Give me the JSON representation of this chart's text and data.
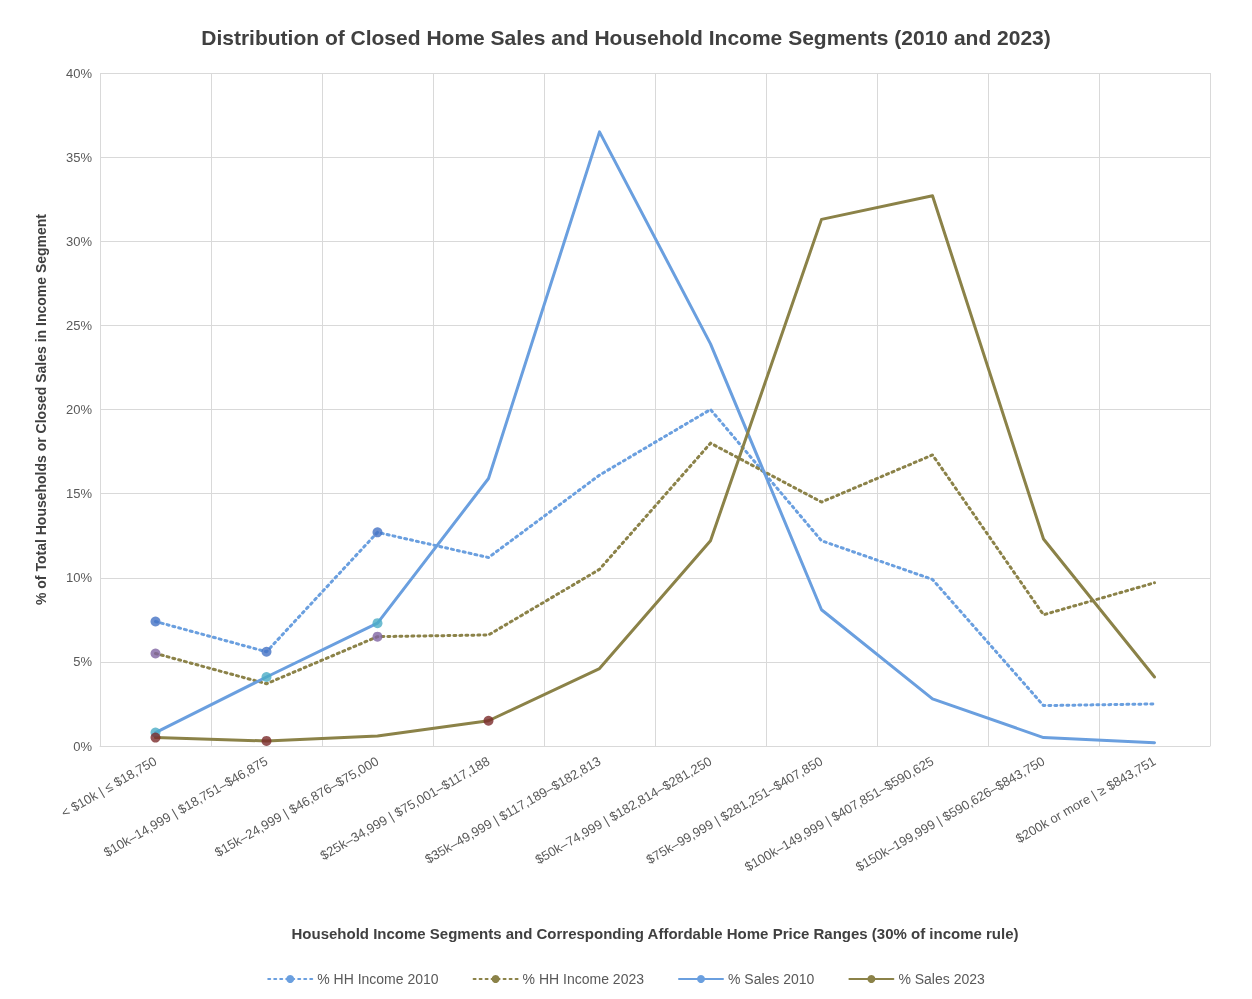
{
  "chart_data": {
    "type": "line",
    "title": "Distribution of Closed Home Sales and Household Income Segments (2010 and 2023)",
    "xlabel": "Household Income Segments and Corresponding Affordable Home Price Ranges (30% of income rule)",
    "ylabel": "% of Total Households or Closed Sales in Income Segment",
    "categories": [
      "< $10k | ≤ $18,750",
      "$10k–14,999 | $18,751–$46,875",
      "$15k–24,999 | $46,876–$75,000",
      "$25k–34,999 | $75,001–$117,188",
      "$35k–49,999 | $117,189–$182,813",
      "$50k–74,999 | $182,814–$281,250",
      "$75k–99,999 | $281,251–$407,850",
      "$100k–149,999 | $407,851–$590,625",
      "$150k–199,999 | $590,626–$843,750",
      "$200k or more | ≥ $843,751"
    ],
    "series": [
      {
        "name": "% HH Income 2010",
        "color": "#6a9fdf",
        "line_style": "dotted",
        "values": [
          7.4,
          5.6,
          12.7,
          11.2,
          16.1,
          20.0,
          12.2,
          9.9,
          2.4,
          2.5
        ]
      },
      {
        "name": "% HH Income 2023",
        "color": "#8b8248",
        "line_style": "dotted",
        "values": [
          5.5,
          3.7,
          6.5,
          6.6,
          10.5,
          18.0,
          14.5,
          17.3,
          7.8,
          9.7
        ]
      },
      {
        "name": "% Sales 2010",
        "color": "#6a9fdf",
        "line_style": "solid",
        "values": [
          0.8,
          4.1,
          7.3,
          15.9,
          36.5,
          23.9,
          8.1,
          2.8,
          0.5,
          0.2
        ]
      },
      {
        "name": "% Sales 2023",
        "color": "#8b8248",
        "line_style": "solid",
        "values": [
          0.5,
          0.3,
          0.6,
          1.5,
          4.6,
          12.2,
          31.3,
          32.7,
          12.3,
          4.1
        ]
      },
      {
        "type": "scatter",
        "color": "#4472c4",
        "marker": "circle",
        "x": [
          "< $10k | ≤ $18,750",
          "$10k–14,999 | $18,751–$46,875",
          "$15k–24,999 | $46,876–$75,000"
        ],
        "values": [
          7.4,
          5.6,
          12.7
        ]
      },
      {
        "type": "scatter",
        "color": "#8064a2",
        "marker": "circle",
        "x": [
          "< $10k | ≤ $18,750",
          "$15k–24,999 | $46,876–$75,000"
        ],
        "values": [
          5.5,
          6.5
        ]
      },
      {
        "type": "scatter",
        "color": "#4bacc6",
        "marker": "circle",
        "x": [
          "< $10k | ≤ $18,750",
          "$10k–14,999 | $18,751–$46,875",
          "$15k–24,999 | $46,876–$75,000"
        ],
        "values": [
          0.8,
          4.1,
          7.3
        ]
      },
      {
        "type": "scatter",
        "color": "#7b2b2b",
        "marker": "circle",
        "x": [
          "< $10k | ≤ $18,750",
          "$10k–14,999 | $18,751–$46,875",
          "$25k–34,999 | $75,001–$117,188"
        ],
        "values": [
          0.5,
          0.3,
          1.5
        ]
      }
    ],
    "ylim": [
      0,
      40
    ],
    "yticks": [
      {
        "value": 0,
        "label": "0%"
      },
      {
        "value": 5,
        "label": "5%"
      },
      {
        "value": 10,
        "label": "10%"
      },
      {
        "value": 15,
        "label": "15%"
      },
      {
        "value": 20,
        "label": "20%"
      },
      {
        "value": 25,
        "label": "25%"
      },
      {
        "value": 30,
        "label": "30%"
      },
      {
        "value": 35,
        "label": "35%"
      },
      {
        "value": 40,
        "label": "40%"
      }
    ],
    "grid": true,
    "legend": "bottom"
  }
}
